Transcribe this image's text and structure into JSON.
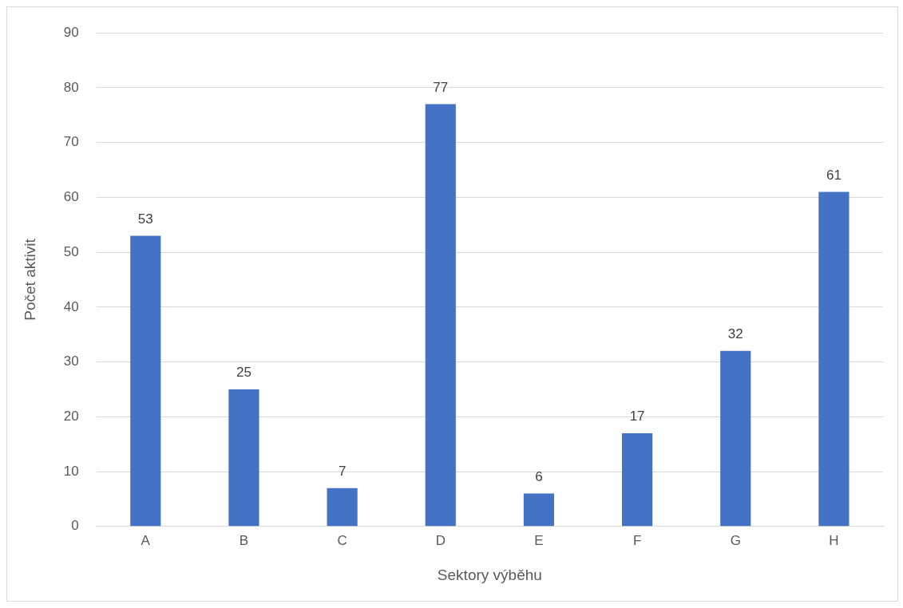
{
  "chart_data": {
    "type": "bar",
    "xlabel": "Sektory výběhu",
    "ylabel": "Počet aktivit",
    "categories": [
      "A",
      "B",
      "C",
      "D",
      "E",
      "F",
      "G",
      "H"
    ],
    "values": [
      53,
      25,
      7,
      77,
      6,
      17,
      32,
      61
    ],
    "color": "#4472c4",
    "ylim": [
      0,
      90
    ],
    "yticks": [
      0,
      10,
      20,
      30,
      40,
      50,
      60,
      70,
      80,
      90
    ],
    "grid": "y",
    "data_labels": true,
    "legend": false
  }
}
